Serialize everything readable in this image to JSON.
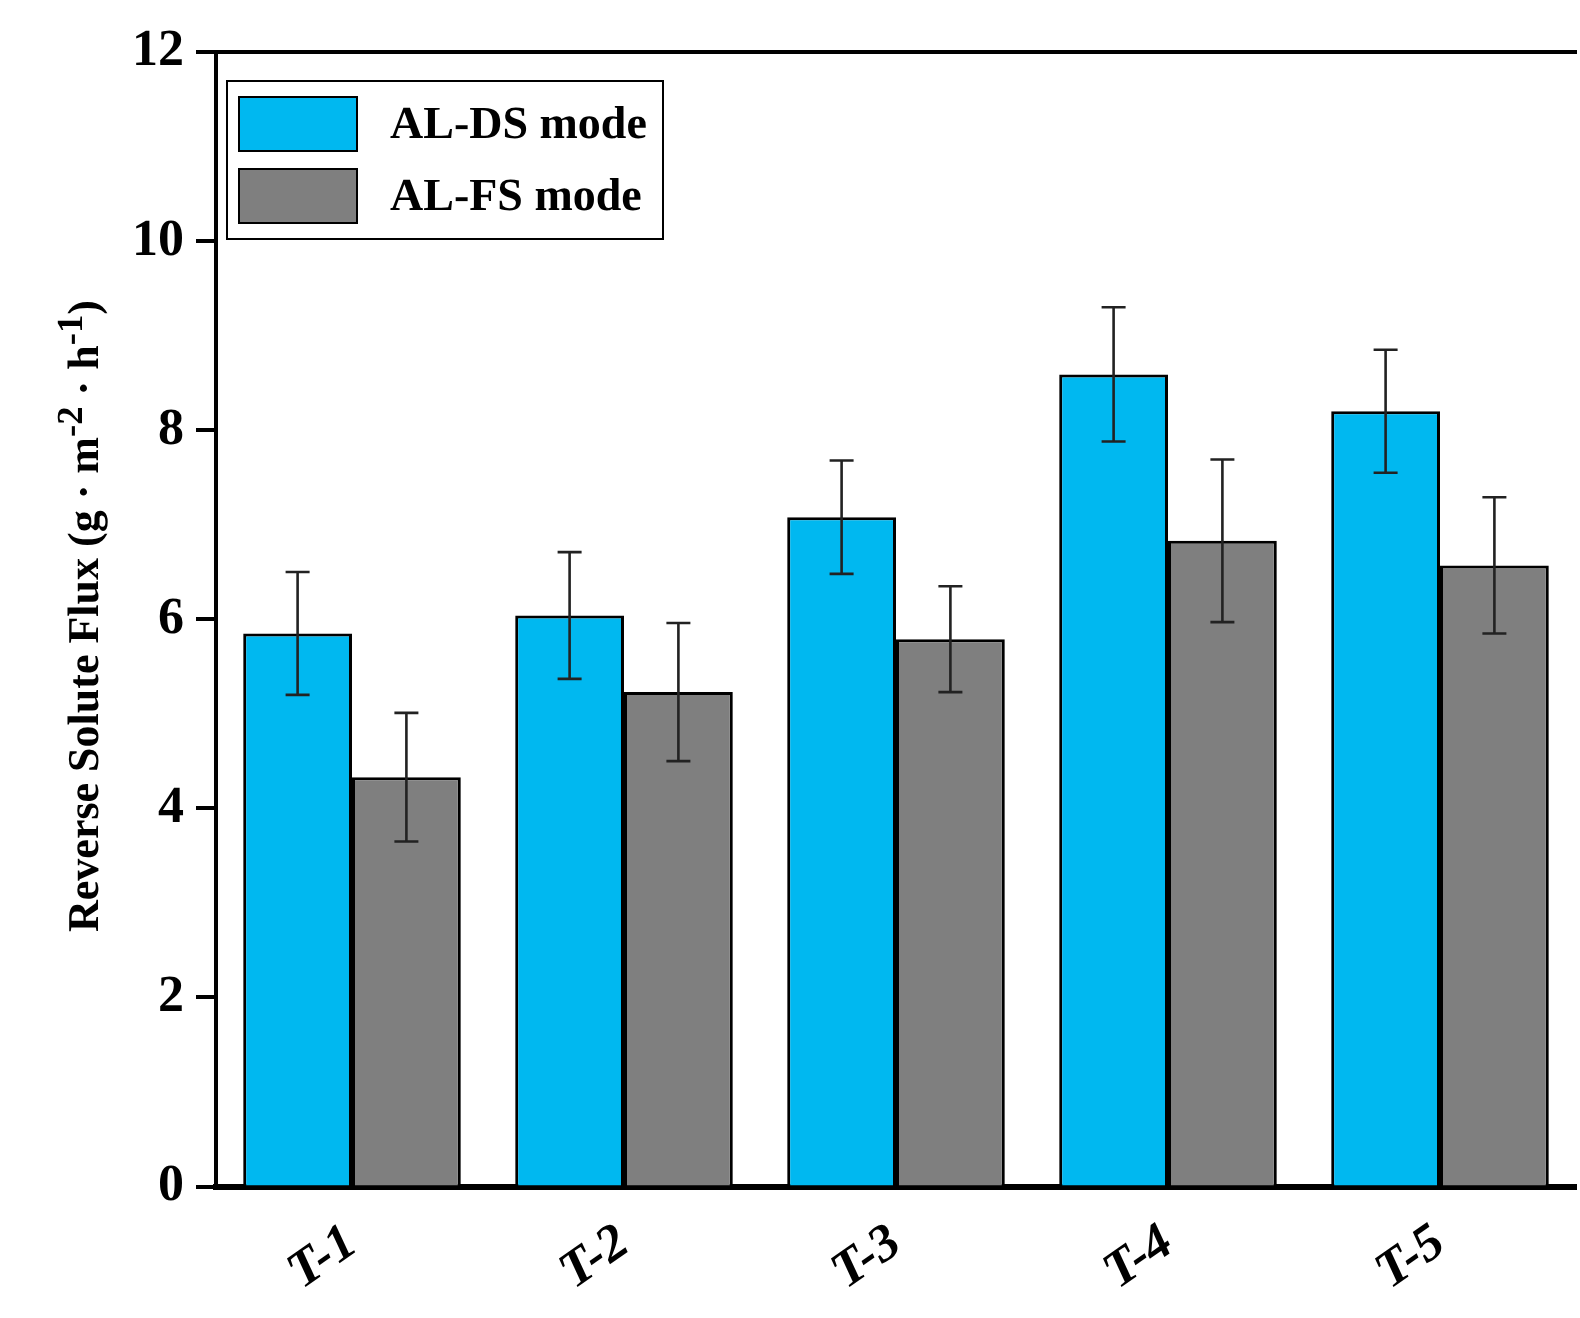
{
  "chart_data": {
    "type": "bar",
    "ylabel": "Reverse Solute Flux (g · m$^{-2}$ · h$^{-1}$)",
    "categories": [
      "T-1",
      "T-2",
      "T-3",
      "T-4",
      "T-5"
    ],
    "series": [
      {
        "name": "AL-DS mode",
        "color": "#00b8f0",
        "values": [
          5.85,
          6.04,
          7.08,
          8.59,
          8.2
        ],
        "errors": [
          0.65,
          0.67,
          0.6,
          0.71,
          0.65
        ]
      },
      {
        "name": "AL-FS mode",
        "color": "#7f7f7f",
        "values": [
          4.33,
          5.23,
          5.79,
          6.83,
          6.57
        ],
        "errors": [
          0.68,
          0.73,
          0.56,
          0.86,
          0.72
        ]
      }
    ],
    "ylim": [
      0,
      12
    ],
    "yticks": [
      0,
      2,
      4,
      6,
      8,
      10,
      12
    ],
    "grid": false,
    "legend": "top left"
  }
}
